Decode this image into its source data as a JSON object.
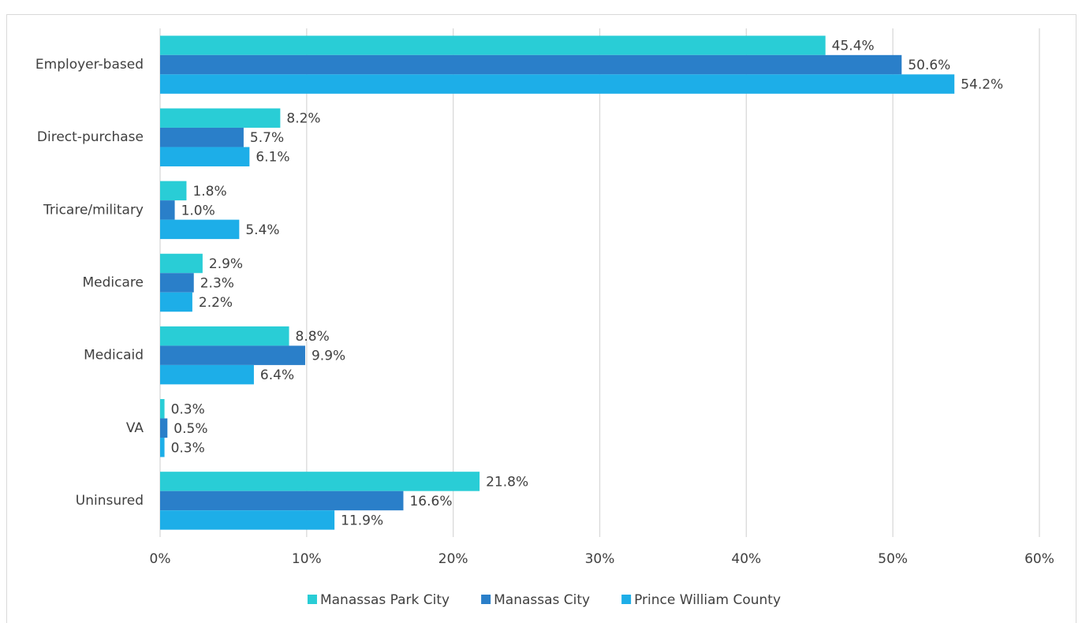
{
  "chart_data": {
    "type": "bar",
    "orientation": "horizontal",
    "categories": [
      "Employer-based",
      "Direct-purchase",
      "Tricare/military",
      "Medicare",
      "Medicaid",
      "VA",
      "Uninsured"
    ],
    "series": [
      {
        "name": "Manassas Park City",
        "color": "#29cdd6",
        "values": [
          45.4,
          8.2,
          1.8,
          2.9,
          8.8,
          0.3,
          21.8
        ],
        "value_labels": [
          "45.4%",
          "8.2%",
          "1.8%",
          "2.9%",
          "8.8%",
          "0.3%",
          "21.8%"
        ]
      },
      {
        "name": "Manassas City",
        "color": "#2a7fc9",
        "values": [
          50.6,
          5.7,
          1.0,
          2.3,
          9.9,
          0.5,
          16.6
        ],
        "value_labels": [
          "50.6%",
          "5.7%",
          "1.0%",
          "2.3%",
          "9.9%",
          "0.5%",
          "16.6%"
        ]
      },
      {
        "name": "Prince William County",
        "color": "#1daee8",
        "values": [
          54.2,
          6.1,
          5.4,
          2.2,
          6.4,
          0.3,
          11.9
        ],
        "value_labels": [
          "54.2%",
          "6.1%",
          "5.4%",
          "2.2%",
          "6.4%",
          "0.3%",
          "11.9%"
        ]
      }
    ],
    "xlim": [
      0,
      60
    ],
    "xticks": [
      {
        "value": 0,
        "label": "0%"
      },
      {
        "value": 10,
        "label": "10%"
      },
      {
        "value": 20,
        "label": "20%"
      },
      {
        "value": 30,
        "label": "30%"
      },
      {
        "value": 40,
        "label": "40%"
      },
      {
        "value": 50,
        "label": "50%"
      },
      {
        "value": 60,
        "label": "60%"
      }
    ],
    "grid": true,
    "legend": "bottom"
  }
}
